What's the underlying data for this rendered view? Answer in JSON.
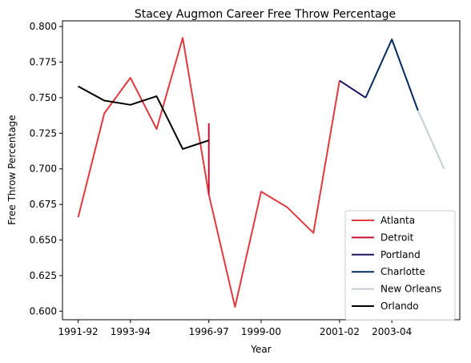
{
  "chart_data": {
    "type": "line",
    "title": "Stacey Augmon Career Free Throw Percentage",
    "xlabel": "Year",
    "ylabel": "Free Throw Percentage",
    "x_tick_labels": [
      "1991-92",
      "1993-94",
      "1996-97",
      "1999-00",
      "2001-02",
      "2003-04"
    ],
    "x_tick_positions": [
      0,
      2,
      5,
      7,
      10,
      12
    ],
    "ylim": [
      0.594,
      0.804
    ],
    "xlim": [
      -0.6,
      14.6
    ],
    "y_ticks": [
      0.6,
      0.625,
      0.65,
      0.675,
      0.7,
      0.725,
      0.75,
      0.775,
      0.8
    ],
    "y_tick_labels": [
      "0.600",
      "0.625",
      "0.650",
      "0.675",
      "0.700",
      "0.725",
      "0.750",
      "0.775",
      "0.800"
    ],
    "grid": false,
    "legend_position": "lower-right",
    "series": [
      {
        "name": "Atlanta",
        "color": "#e03a3e",
        "points": [
          [
            0,
            0.666
          ],
          [
            1,
            0.739
          ],
          [
            2,
            0.764
          ],
          [
            3,
            0.728
          ],
          [
            4,
            0.792
          ],
          [
            5,
            0.682
          ],
          [
            6,
            0.603
          ],
          [
            7,
            0.684
          ],
          [
            8,
            0.673
          ],
          [
            9,
            0.655
          ],
          [
            10,
            0.762
          ]
        ]
      },
      {
        "name": "Detroit",
        "color": "#c8102e",
        "points": [
          [
            5,
            0.732
          ],
          [
            5,
            0.682
          ]
        ]
      },
      {
        "name": "Portland",
        "color": "#1d1160",
        "points": [
          [
            10,
            0.762
          ],
          [
            11,
            0.75
          ]
        ]
      },
      {
        "name": "Charlotte",
        "color": "#002b5c",
        "points": [
          [
            11,
            0.75
          ],
          [
            12,
            0.791
          ],
          [
            13,
            0.741
          ]
        ]
      },
      {
        "name": "New Orleans",
        "color": "#c4ced4",
        "points": [
          [
            13,
            0.741
          ],
          [
            14,
            0.7
          ]
        ]
      },
      {
        "name": "Orlando",
        "color": "#000000",
        "points": [
          [
            0,
            0.758
          ],
          [
            1,
            0.748
          ],
          [
            2,
            0.745
          ],
          [
            3,
            0.751
          ],
          [
            4,
            0.714
          ],
          [
            5,
            0.72
          ]
        ]
      }
    ]
  }
}
